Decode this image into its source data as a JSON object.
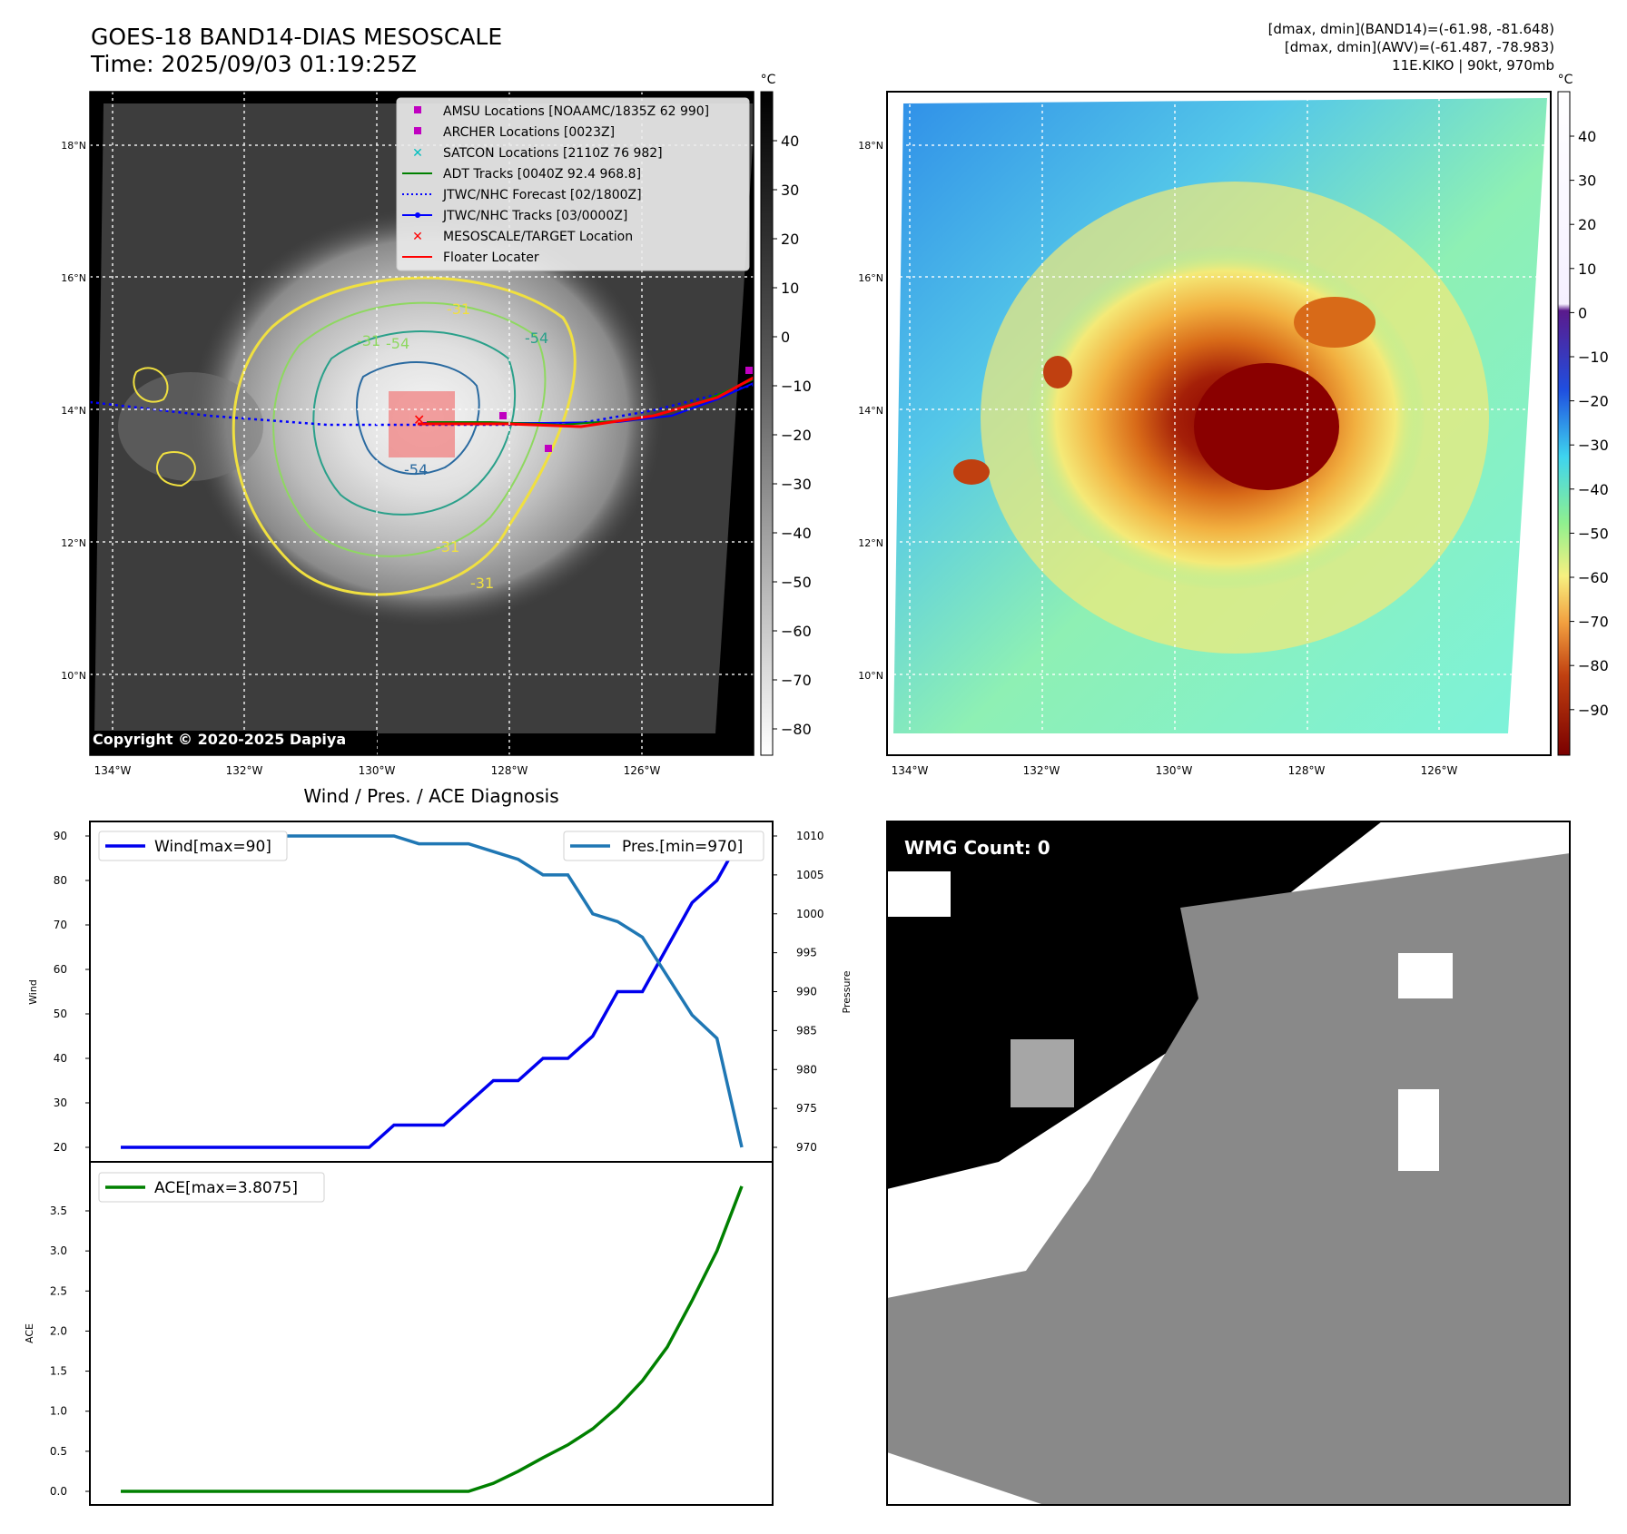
{
  "header": {
    "title_line1": "GOES-18 BAND14-DIAS MESOSCALE",
    "title_line2": "Time: 2025/09/03 01:19:25Z",
    "info_line1": "[dmax, dmin](BAND14)=(-61.98, -81.648)",
    "info_line2": "[dmax, dmin](AWV)=(-61.487, -78.983)",
    "info_line3": "11E.KIKO | 90kt, 970mb"
  },
  "ir_panel": {
    "copyright": "Copyright © 2020-2025 Dapiya",
    "lat_labels": [
      "18°N",
      "16°N",
      "14°N",
      "12°N",
      "10°N"
    ],
    "lon_labels": [
      "134°W",
      "132°W",
      "130°W",
      "128°W",
      "126°W"
    ],
    "contour_labels": [
      "-31",
      "-54",
      "-54",
      "-31",
      "-31",
      "-31",
      "-54"
    ],
    "legend": [
      {
        "label": "AMSU Locations [NOAAMC/1835Z 62 990]",
        "marker": "square",
        "color": "#c000c0"
      },
      {
        "label": "ARCHER Locations [0023Z]",
        "marker": "square",
        "color": "#c000c0"
      },
      {
        "label": "SATCON Locations [2110Z 76 982]",
        "marker": "x",
        "color": "#00bfbf"
      },
      {
        "label": "ADT Tracks [0040Z 92.4 968.8]",
        "marker": "line",
        "color": "#008000"
      },
      {
        "label": "JTWC/NHC Forecast [02/1800Z]",
        "marker": "dotted",
        "color": "#0000ff"
      },
      {
        "label": "JTWC/NHC Tracks [03/0000Z]",
        "marker": "line-dot",
        "color": "#0000ff"
      },
      {
        "label": "MESOSCALE/TARGET Location",
        "marker": "x",
        "color": "#ff0000"
      },
      {
        "label": "Floater Locater",
        "marker": "line",
        "color": "#ff0000"
      }
    ],
    "colorbar": {
      "unit": "°C",
      "ticks": [
        "40",
        "30",
        "20",
        "10",
        "0",
        "−10",
        "−20",
        "−30",
        "−40",
        "−50",
        "−60",
        "−70",
        "−80"
      ]
    }
  },
  "awv_panel": {
    "lat_labels": [
      "18°N",
      "16°N",
      "14°N",
      "12°N",
      "10°N"
    ],
    "lon_labels": [
      "134°W",
      "132°W",
      "130°W",
      "128°W",
      "126°W"
    ],
    "colorbar": {
      "unit": "°C",
      "ticks": [
        "40",
        "30",
        "20",
        "10",
        "0",
        "−10",
        "−20",
        "−30",
        "−40",
        "−50",
        "−60",
        "−70",
        "−80",
        "−90"
      ]
    }
  },
  "diagnosis_panel": {
    "title": "Wind / Pres. / ACE Diagnosis",
    "wind_ylabel": "Wind",
    "pres_ylabel": "Pressure",
    "ace_ylabel": "ACE",
    "wind_legend": "Wind[max=90]",
    "pres_legend": "Pres.[min=970]",
    "ace_legend": "ACE[max=3.8075]",
    "wind_ticks": [
      "90",
      "80",
      "70",
      "60",
      "50",
      "40",
      "30",
      "20"
    ],
    "pres_ticks": [
      "1010",
      "1005",
      "1000",
      "995",
      "990",
      "985",
      "980",
      "975",
      "970"
    ],
    "ace_ticks": [
      "3.5",
      "3.0",
      "2.5",
      "2.0",
      "1.5",
      "1.0",
      "0.5",
      "0.0"
    ]
  },
  "wmg_panel": {
    "label": "WMG Count: 0"
  },
  "colors": {
    "wind": "#0000ee",
    "pressure": "#1f77b4",
    "ace": "#008000"
  },
  "chart_data": [
    {
      "type": "line",
      "title": "Wind / Pres. / ACE Diagnosis",
      "x": [
        0,
        1,
        2,
        3,
        4,
        5,
        6,
        7,
        8,
        9,
        10,
        11,
        12,
        13,
        14,
        15,
        16,
        17,
        18,
        19,
        20,
        21,
        22,
        23,
        24,
        25
      ],
      "series": [
        {
          "name": "Wind[max=90]",
          "axis": "left",
          "ylim": [
            20,
            90
          ],
          "values": [
            20,
            20,
            20,
            20,
            20,
            20,
            20,
            20,
            20,
            20,
            20,
            25,
            25,
            25,
            30,
            35,
            35,
            40,
            40,
            45,
            55,
            55,
            65,
            75,
            80,
            90
          ]
        },
        {
          "name": "Pres.[min=970]",
          "axis": "right",
          "ylim": [
            970,
            1010
          ],
          "values": [
            1010,
            1010,
            1010,
            1010,
            1010,
            1010,
            1010,
            1010,
            1010,
            1010,
            1010,
            1010,
            1009,
            1009,
            1009,
            1008,
            1007,
            1005,
            1005,
            1000,
            999,
            997,
            992,
            987,
            984,
            970
          ]
        }
      ],
      "xlabel": "",
      "ylabel": "Wind",
      "ylabel_right": "Pressure"
    },
    {
      "type": "line",
      "title": "",
      "x": [
        0,
        1,
        2,
        3,
        4,
        5,
        6,
        7,
        8,
        9,
        10,
        11,
        12,
        13,
        14,
        15,
        16,
        17,
        18,
        19,
        20,
        21,
        22,
        23,
        24,
        25
      ],
      "series": [
        {
          "name": "ACE[max=3.8075]",
          "values": [
            0,
            0,
            0,
            0,
            0,
            0,
            0,
            0,
            0,
            0,
            0,
            0,
            0,
            0,
            0,
            0.1,
            0.25,
            0.42,
            0.58,
            0.78,
            1.05,
            1.38,
            1.8,
            2.38,
            3.0,
            3.8075
          ]
        }
      ],
      "ylim": [
        -0.1,
        3.9
      ],
      "xlabel": "",
      "ylabel": "ACE"
    }
  ]
}
